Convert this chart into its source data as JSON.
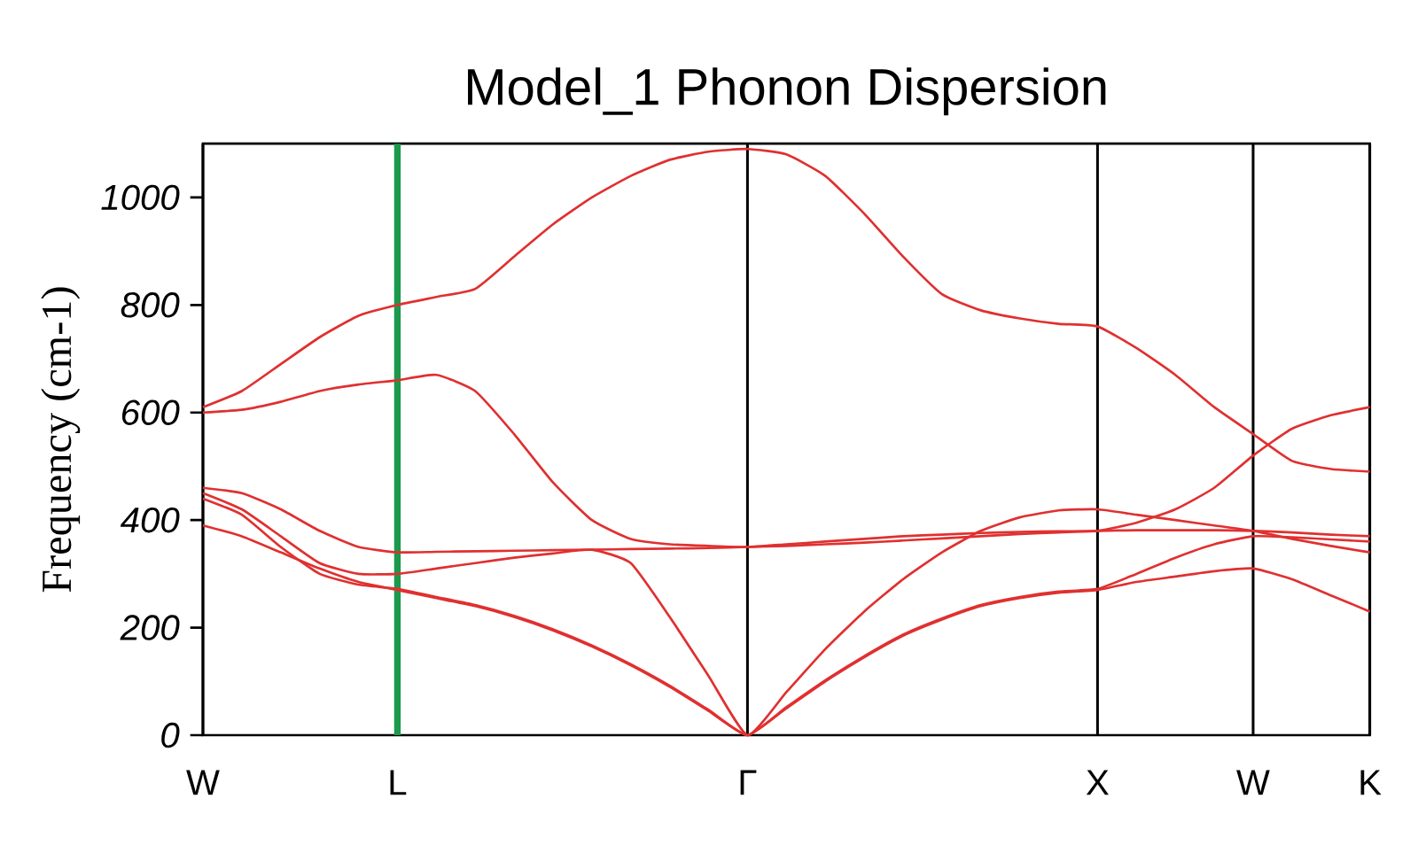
{
  "chart_data": {
    "type": "line",
    "title": "Model_1 Phonon Dispersion",
    "ylabel": "Frequency (cm-1)",
    "categories": [
      "W",
      null,
      null,
      null,
      null,
      "L",
      null,
      null,
      null,
      null,
      null,
      null,
      null,
      null,
      "Γ",
      null,
      null,
      null,
      null,
      null,
      null,
      null,
      null,
      "X",
      null,
      null,
      null,
      "W",
      null,
      null,
      "K"
    ],
    "ylim": [
      0,
      1100
    ],
    "yticks": [
      0,
      200,
      400,
      600,
      800,
      1000
    ],
    "grid": "x",
    "marker": "none",
    "line_style": "solid",
    "ref_lines": [
      {
        "axis": "x",
        "value": "L",
        "color": "#1a9a4a"
      }
    ],
    "series": [
      {
        "color": "#e03030",
        "values": [
          390,
          370,
          340,
          310,
          285,
          270,
          255,
          240,
          220,
          195,
          165,
          130,
          90,
          45,
          0,
          50,
          100,
          145,
          185,
          215,
          240,
          255,
          265,
          270,
          285,
          295,
          305,
          310,
          290,
          260,
          230
        ]
      },
      {
        "color": "#e03030",
        "values": [
          440,
          410,
          350,
          300,
          280,
          272,
          257,
          242,
          222,
          197,
          167,
          132,
          92,
          47,
          0,
          52,
          102,
          147,
          187,
          217,
          242,
          257,
          267,
          272,
          300,
          330,
          355,
          370,
          368,
          364,
          360
        ]
      },
      {
        "color": "#e03030",
        "values": [
          450,
          420,
          370,
          320,
          300,
          300,
          310,
          320,
          330,
          338,
          345,
          320,
          220,
          110,
          0,
          80,
          160,
          230,
          290,
          340,
          380,
          405,
          418,
          420,
          410,
          400,
          390,
          380,
          365,
          352,
          340
        ]
      },
      {
        "color": "#e03030",
        "values": [
          460,
          450,
          420,
          380,
          350,
          340,
          341,
          342,
          343,
          344,
          345,
          346,
          347,
          348,
          350,
          352,
          355,
          358,
          362,
          366,
          370,
          374,
          377,
          380,
          381,
          381,
          381,
          380,
          377,
          373,
          370
        ]
      },
      {
        "color": "#e03030",
        "values": [
          600,
          605,
          620,
          640,
          652,
          660,
          670,
          640,
          560,
          470,
          400,
          365,
          355,
          352,
          350,
          355,
          360,
          365,
          370,
          373,
          376,
          378,
          379,
          380,
          395,
          420,
          460,
          520,
          570,
          595,
          610
        ]
      },
      {
        "color": "#e03030",
        "values": [
          610,
          640,
          690,
          740,
          780,
          800,
          815,
          830,
          890,
          950,
          1000,
          1040,
          1070,
          1085,
          1090,
          1080,
          1040,
          970,
          890,
          820,
          790,
          775,
          765,
          760,
          720,
          670,
          610,
          560,
          510,
          495,
          490
        ]
      }
    ]
  }
}
